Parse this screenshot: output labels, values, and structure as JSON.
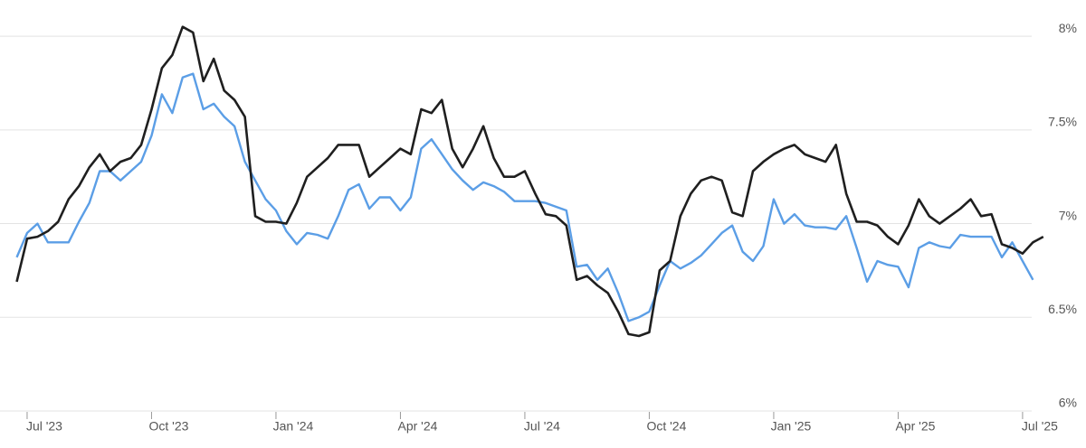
{
  "chart_data": {
    "type": "line",
    "categories": [
      null,
      "Jul '23",
      null,
      null,
      null,
      null,
      null,
      null,
      null,
      null,
      null,
      null,
      null,
      "Oct '23",
      null,
      null,
      null,
      null,
      null,
      null,
      null,
      null,
      null,
      null,
      null,
      "Jan '24",
      null,
      null,
      null,
      null,
      null,
      null,
      null,
      null,
      null,
      null,
      null,
      "Apr '24",
      null,
      null,
      null,
      null,
      null,
      null,
      null,
      null,
      null,
      null,
      null,
      "Jul '24",
      null,
      null,
      null,
      null,
      null,
      null,
      null,
      null,
      null,
      null,
      null,
      "Oct '24",
      null,
      null,
      null,
      null,
      null,
      null,
      null,
      null,
      null,
      null,
      null,
      "Jan '25",
      null,
      null,
      null,
      null,
      null,
      null,
      null,
      null,
      null,
      null,
      null,
      "Apr '25",
      null,
      null,
      null,
      null,
      null,
      null,
      null,
      null,
      null,
      null,
      null,
      "Jul '25",
      null,
      null
    ],
    "series": [
      {
        "color": "#1f1f1f",
        "values": [
          6.69,
          6.92,
          6.93,
          6.96,
          7.01,
          7.13,
          7.2,
          7.3,
          7.37,
          7.28,
          7.33,
          7.35,
          7.42,
          7.61,
          7.83,
          7.9,
          8.05,
          8.02,
          7.76,
          7.88,
          7.71,
          7.66,
          7.57,
          7.04,
          7.01,
          7.01,
          7.0,
          7.11,
          7.25,
          7.3,
          7.35,
          7.42,
          7.42,
          7.42,
          7.25,
          7.3,
          7.35,
          7.4,
          7.37,
          7.61,
          7.59,
          7.66,
          7.4,
          7.3,
          7.4,
          7.52,
          7.35,
          7.25,
          7.25,
          7.28,
          7.16,
          7.05,
          7.04,
          6.99,
          6.7,
          6.72,
          6.67,
          6.63,
          6.53,
          6.41,
          6.4,
          6.42,
          6.75,
          6.8,
          7.04,
          7.16,
          7.23,
          7.25,
          7.23,
          7.06,
          7.04,
          7.28,
          7.33,
          7.37,
          7.4,
          7.42,
          7.37,
          7.35,
          7.33,
          7.42,
          7.16,
          7.01,
          7.01,
          6.99,
          6.93,
          6.89,
          6.99,
          7.13,
          7.04,
          7.0,
          7.04,
          7.08,
          7.13,
          7.04,
          7.05,
          6.89,
          6.87,
          6.84,
          6.9,
          6.93
        ]
      },
      {
        "color": "#5b9ee6",
        "values": [
          6.82,
          6.95,
          7.0,
          6.9,
          6.9,
          6.9,
          7.01,
          7.11,
          7.28,
          7.28,
          7.23,
          7.28,
          7.33,
          7.47,
          7.69,
          7.59,
          7.78,
          7.8,
          7.61,
          7.64,
          7.57,
          7.52,
          7.33,
          7.23,
          7.13,
          7.07,
          6.96,
          6.89,
          6.95,
          6.94,
          6.92,
          7.04,
          7.18,
          7.21,
          7.08,
          7.14,
          7.14,
          7.07,
          7.14,
          7.4,
          7.45,
          7.37,
          7.29,
          7.23,
          7.18,
          7.22,
          7.2,
          7.17,
          7.12,
          7.12,
          7.12,
          7.11,
          7.09,
          7.07,
          6.77,
          6.78,
          6.7,
          6.76,
          6.63,
          6.48,
          6.5,
          6.53,
          6.67,
          6.8,
          6.76,
          6.79,
          6.83,
          6.89,
          6.95,
          6.99,
          6.85,
          6.8,
          6.88,
          7.13,
          7.0,
          7.05,
          6.99,
          6.98,
          6.98,
          6.97,
          7.04,
          6.87,
          6.69,
          6.8,
          6.78,
          6.77,
          6.66,
          6.87,
          6.9,
          6.88,
          6.87,
          6.94,
          6.93,
          6.93,
          6.93,
          6.82,
          6.9,
          6.8,
          6.7,
          null
        ]
      }
    ],
    "ylim": [
      6,
      8.15
    ],
    "yticks": [
      {
        "value": 6,
        "label": "6%"
      },
      {
        "value": 6.5,
        "label": "6.5%"
      },
      {
        "value": 7,
        "label": "7%"
      },
      {
        "value": 7.5,
        "label": "7.5%"
      },
      {
        "value": 8,
        "label": "8%"
      }
    ],
    "grid": true
  }
}
